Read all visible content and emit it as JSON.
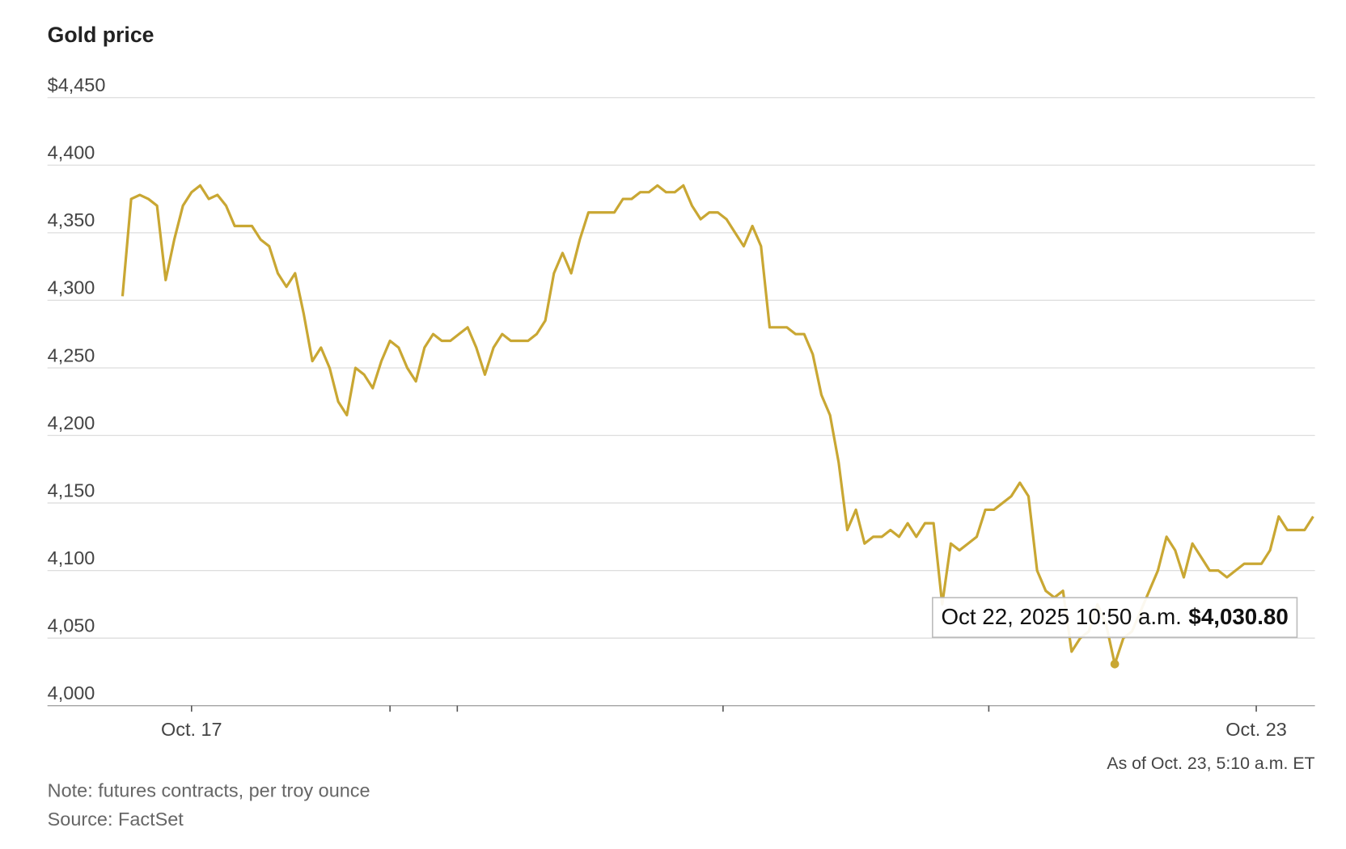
{
  "chart_data": {
    "type": "line",
    "title": "Gold price",
    "as_of": "As of Oct. 23, 5:10 a.m. ET",
    "note": "Note: futures contracts, per troy ounce",
    "source": "Source: FactSet",
    "tooltip_label": "Oct 22, 2025 10:50 a.m.",
    "grid": true,
    "ylim": [
      4000,
      4450
    ],
    "yticks": [
      {
        "value": 4000,
        "label": "4,000"
      },
      {
        "value": 4050,
        "label": "4,050"
      },
      {
        "value": 4100,
        "label": "4,100"
      },
      {
        "value": 4150,
        "label": "4,150"
      },
      {
        "value": 4200,
        "label": "4,200"
      },
      {
        "value": 4250,
        "label": "4,250"
      },
      {
        "value": 4300,
        "label": "4,300"
      },
      {
        "value": 4350,
        "label": "4,350"
      },
      {
        "value": 4400,
        "label": "4,400"
      },
      {
        "value": 4450,
        "label": "$4,450"
      }
    ],
    "xlim": [
      -8.7,
      138.2
    ],
    "xticks": [
      {
        "value": 8,
        "label": "Oct. 17"
      },
      {
        "value": 31,
        "label": null
      },
      {
        "value": 38.8,
        "label": null
      },
      {
        "value": 69.6,
        "label": null
      },
      {
        "value": 100.4,
        "label": null
      },
      {
        "value": 131.4,
        "label": "Oct. 23"
      }
    ],
    "series": [
      {
        "name": "Gold price",
        "color": "#c9a733",
        "values": [
          4303,
          4375,
          4378,
          4375,
          4370,
          4315,
          4345,
          4370,
          4380,
          4385,
          4375,
          4378,
          4370,
          4355,
          4355,
          4355,
          4345,
          4340,
          4320,
          4310,
          4320,
          4290,
          4255,
          4265,
          4250,
          4225,
          4215,
          4250,
          4245,
          4235,
          4255,
          4270,
          4265,
          4250,
          4240,
          4265,
          4275,
          4270,
          4270,
          4275,
          4280,
          4265,
          4245,
          4265,
          4275,
          4270,
          4270,
          4270,
          4275,
          4285,
          4320,
          4335,
          4320,
          4345,
          4365,
          4365,
          4365,
          4365,
          4375,
          4375,
          4380,
          4380,
          4385,
          4380,
          4380,
          4385,
          4370,
          4360,
          4365,
          4365,
          4360,
          4350,
          4340,
          4355,
          4340,
          4280,
          4280,
          4280,
          4275,
          4275,
          4260,
          4230,
          4215,
          4180,
          4130,
          4145,
          4120,
          4125,
          4125,
          4130,
          4125,
          4135,
          4125,
          4135,
          4135,
          4075,
          4120,
          4115,
          4120,
          4125,
          4145,
          4145,
          4150,
          4155,
          4165,
          4155,
          4100,
          4085,
          4080,
          4085,
          4040,
          4050,
          4055,
          4075,
          4060,
          4030.8,
          4050,
          4055,
          4070,
          4085,
          4100,
          4125,
          4115,
          4095,
          4120,
          4110,
          4100,
          4100,
          4095,
          4100,
          4105,
          4105,
          4105,
          4115,
          4140,
          4130,
          4130,
          4130,
          4140
        ],
        "value_labels": [
          null,
          null,
          null,
          null,
          null,
          null,
          null,
          null,
          null,
          null,
          null,
          null,
          null,
          null,
          null,
          null,
          null,
          null,
          null,
          null,
          null,
          null,
          null,
          null,
          null,
          null,
          null,
          null,
          null,
          null,
          null,
          null,
          null,
          null,
          null,
          null,
          null,
          null,
          null,
          null,
          null,
          null,
          null,
          null,
          null,
          null,
          null,
          null,
          null,
          null,
          null,
          null,
          null,
          null,
          null,
          null,
          null,
          null,
          null,
          null,
          null,
          null,
          null,
          null,
          null,
          null,
          null,
          null,
          null,
          null,
          null,
          null,
          null,
          null,
          null,
          null,
          null,
          null,
          null,
          null,
          null,
          null,
          null,
          null,
          null,
          null,
          null,
          null,
          null,
          null,
          null,
          null,
          null,
          null,
          null,
          null,
          null,
          null,
          null,
          null,
          null,
          null,
          null,
          null,
          null,
          null,
          null,
          null,
          null,
          null,
          null,
          null,
          null,
          null,
          null,
          "$4,030.80",
          null,
          null,
          null,
          null,
          null,
          null,
          null,
          null,
          null,
          null,
          null,
          null,
          null,
          null,
          null,
          null,
          null,
          null,
          null,
          null,
          null,
          null,
          null
        ]
      }
    ]
  }
}
